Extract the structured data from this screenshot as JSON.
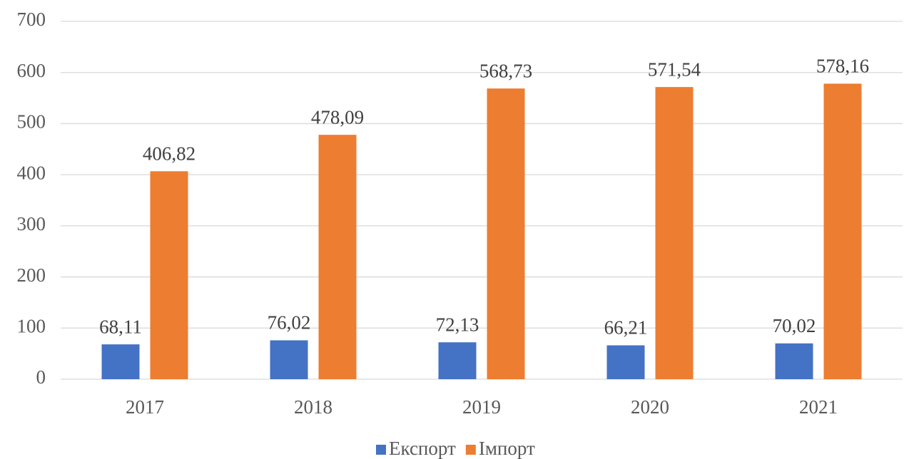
{
  "chart_data": {
    "type": "bar",
    "categories": [
      "2017",
      "2018",
      "2019",
      "2020",
      "2021"
    ],
    "series": [
      {
        "name": "Експорт",
        "color": "#4472c4",
        "values": [
          68.11,
          76.02,
          72.13,
          66.21,
          70.02
        ],
        "value_labels": [
          "68,11",
          "76,02",
          "72,13",
          "66,21",
          "70,02"
        ]
      },
      {
        "name": "Імпорт",
        "color": "#ed7d31",
        "values": [
          406.82,
          478.09,
          568.73,
          571.54,
          578.16
        ],
        "value_labels": [
          "406,82",
          "478,09",
          "568,73",
          "571,54",
          "578,16"
        ]
      }
    ],
    "ylim": [
      0,
      700
    ],
    "yticks": [
      0,
      100,
      200,
      300,
      400,
      500,
      600,
      700
    ],
    "grid": true,
    "legend": "bottom"
  }
}
